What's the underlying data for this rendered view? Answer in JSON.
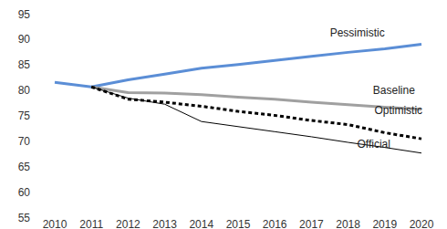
{
  "chart_data": {
    "type": "line",
    "categories": [
      "2010",
      "2011",
      "2012",
      "2013",
      "2014",
      "2015",
      "2016",
      "2017",
      "2018",
      "2019",
      "2020"
    ],
    "series": [
      {
        "name": "Pessimistic",
        "color": "#5b8ed6",
        "line_style": "solid",
        "values": [
          81.5,
          80.6,
          82.0,
          83.1,
          84.3,
          85.0,
          85.8,
          86.6,
          87.4,
          88.1,
          89.0
        ]
      },
      {
        "name": "Baseline",
        "color": "#a0a0a0",
        "line_style": "solid",
        "values": [
          null,
          80.6,
          79.5,
          79.4,
          79.1,
          78.6,
          78.2,
          77.6,
          77.1,
          76.6,
          76.2
        ]
      },
      {
        "name": "Optimistic",
        "color": "#000000",
        "line_style": "dashed",
        "values": [
          null,
          80.6,
          78.2,
          77.6,
          76.8,
          75.8,
          75.0,
          74.0,
          73.2,
          71.6,
          70.4
        ]
      },
      {
        "name": "Official",
        "color": "#000000",
        "line_style": "solid",
        "values": [
          null,
          80.6,
          78.4,
          77.2,
          73.8,
          72.8,
          71.8,
          70.8,
          69.7,
          68.7,
          67.6
        ]
      }
    ],
    "ylim": [
      55,
      95
    ],
    "yticks": [
      55,
      60,
      65,
      70,
      75,
      80,
      85,
      90,
      95
    ],
    "grid": false
  }
}
